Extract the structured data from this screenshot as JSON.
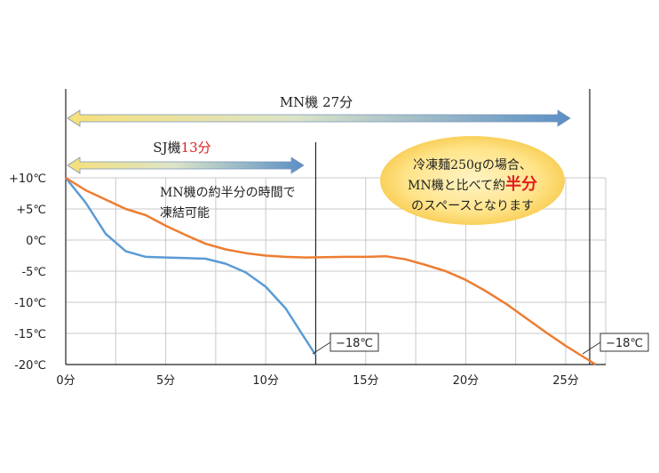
{
  "chart_data": {
    "type": "line",
    "x_tick_labels": [
      "0分",
      "5分",
      "10分",
      "15分",
      "20分",
      "25分"
    ],
    "x_ticks": [
      0,
      5,
      10,
      15,
      20,
      25
    ],
    "xlim": [
      0,
      27
    ],
    "y_tick_labels": [
      "+10℃",
      "+5℃",
      "0℃",
      "-5℃",
      "-10℃",
      "-15℃",
      "-20℃"
    ],
    "y_ticks": [
      10,
      5,
      0,
      -5,
      -10,
      -15,
      -20
    ],
    "ylim": [
      -20,
      10
    ],
    "grid": true,
    "series": [
      {
        "color": "#5B9BD5",
        "x": [
          0,
          1,
          2,
          3,
          4,
          5,
          6,
          7,
          8,
          9,
          10,
          11,
          12,
          12.5
        ],
        "y": [
          10,
          6,
          1,
          -1.8,
          -2.7,
          -2.8,
          -2.9,
          -3.0,
          -3.8,
          -5.2,
          -7.5,
          -11,
          -16,
          -18.5
        ]
      },
      {
        "color": "#ED7D31",
        "x": [
          0,
          1,
          2,
          3,
          4,
          5,
          6,
          7,
          8,
          9,
          10,
          11,
          12,
          13,
          14,
          15,
          16,
          17,
          18,
          19,
          20,
          21,
          22,
          23,
          24,
          25,
          26,
          26.5
        ],
        "y": [
          10,
          8,
          6.5,
          5,
          4,
          2.3,
          0.8,
          -0.6,
          -1.5,
          -2.1,
          -2.5,
          -2.7,
          -2.8,
          -2.75,
          -2.7,
          -2.7,
          -2.6,
          -3.1,
          -4,
          -5,
          -6.4,
          -8.2,
          -10.2,
          -12.5,
          -14.8,
          -17.0,
          -19.0,
          -20
        ]
      }
    ],
    "annotations": {
      "mn_arrow_label": "MN機 27分",
      "sj_arrow_label_prefix": "SJ機",
      "sj_arrow_label_value": "13分",
      "mn_half_note_line1": "MN機の約半分の時間で",
      "mn_half_note_line2": "凍結可能",
      "marker_label_1": "−18℃",
      "marker_label_2": "−18℃",
      "bubble_line1": "冷凍麺250gの場合、",
      "bubble_line2_prefix": "MN機と比べて約",
      "bubble_line2_emphasis": "半分",
      "bubble_line3": "のスペースとなります",
      "marker_x": [
        12.5,
        26.2
      ]
    },
    "colors": {
      "sj_line": "#5B9BD5",
      "mn_line": "#ED7D31",
      "emphasis_red": "#E02020",
      "bubble_fill": "#FBD15E"
    }
  }
}
